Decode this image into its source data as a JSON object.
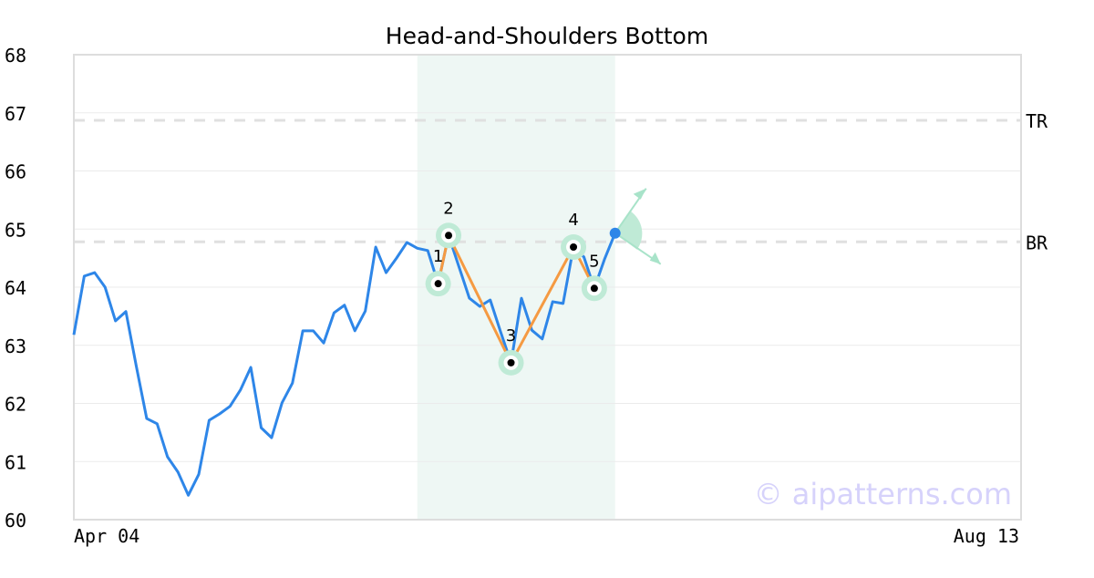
{
  "chart_data": {
    "type": "line",
    "title": "Head-and-Shoulders Bottom",
    "x_tick_labels": [
      "Apr 04",
      "Aug 13"
    ],
    "x_range": [
      0,
      91
    ],
    "ylim": [
      60,
      68
    ],
    "y_ticks": [
      60,
      61,
      62,
      63,
      64,
      65,
      66,
      67,
      68
    ],
    "grid": true,
    "values": [
      63.18,
      64.19,
      64.25,
      64.0,
      63.42,
      63.58,
      62.64,
      61.74,
      61.65,
      61.08,
      60.82,
      60.42,
      60.78,
      61.71,
      61.82,
      61.95,
      62.23,
      62.62,
      61.58,
      61.41,
      62.01,
      62.35,
      63.25,
      63.25,
      63.04,
      63.56,
      63.69,
      63.25,
      63.59,
      64.69,
      64.25,
      64.5,
      64.77,
      64.67,
      64.63,
      64.06,
      64.89,
      64.35,
      63.81,
      63.67,
      63.78,
      63.23,
      62.7,
      63.81,
      63.26,
      63.11,
      63.75,
      63.72,
      64.69,
      64.52,
      63.98,
      64.49,
      64.93
    ],
    "pattern_points": [
      {
        "label": "1",
        "index": 35,
        "value": 64.06
      },
      {
        "label": "2",
        "index": 36,
        "value": 64.89
      },
      {
        "label": "3",
        "index": 42,
        "value": 62.7
      },
      {
        "label": "4",
        "index": 48,
        "value": 64.69
      },
      {
        "label": "5",
        "index": 50,
        "value": 63.98
      }
    ],
    "highlight_range": [
      33,
      52
    ],
    "breakout_index": 52,
    "hlines": [
      {
        "label": "TR",
        "value": 66.87
      },
      {
        "label": "BR",
        "value": 64.78
      }
    ],
    "colors": {
      "line": "#2e86e8",
      "pattern": "#f59a42",
      "highlight": "#eef7f4",
      "marker": "#bfead6",
      "hline": "#e0e0e0"
    }
  },
  "watermark": "© aipatterns.com"
}
